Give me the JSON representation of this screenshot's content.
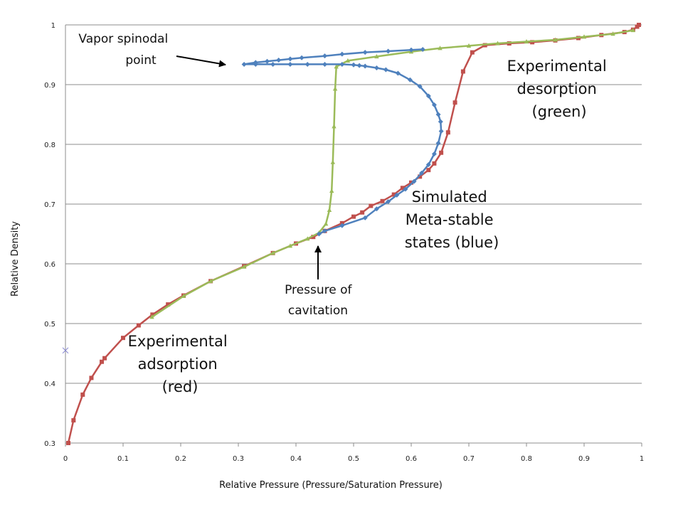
{
  "chart_data": {
    "type": "line",
    "title": "",
    "xlabel": "Relative Pressure (Pressure/Saturation Pressure)",
    "ylabel": "Relative Density",
    "xlim": [
      0,
      1
    ],
    "ylim": [
      0.3,
      1
    ],
    "x_ticks": [
      "0",
      "0.1",
      "0.2",
      "0.3",
      "0.4",
      "0.5",
      "0.6",
      "0.7",
      "0.8",
      "0.9",
      "1"
    ],
    "y_ticks": [
      "0.3",
      "0.4",
      "0.5",
      "0.6",
      "0.7",
      "0.8",
      "0.9",
      "1"
    ],
    "grid": "horizontal",
    "legend": "none",
    "series": [
      {
        "color": "#c0504d",
        "marker": "square",
        "points": [
          [
            0.005,
            0.3
          ],
          [
            0.014,
            0.338
          ],
          [
            0.03,
            0.381
          ],
          [
            0.045,
            0.409
          ],
          [
            0.063,
            0.436
          ],
          [
            0.068,
            0.442
          ],
          [
            0.1,
            0.476
          ],
          [
            0.127,
            0.497
          ],
          [
            0.151,
            0.515
          ],
          [
            0.178,
            0.532
          ],
          [
            0.205,
            0.547
          ],
          [
            0.252,
            0.571
          ],
          [
            0.31,
            0.596
          ],
          [
            0.36,
            0.618
          ],
          [
            0.4,
            0.634
          ],
          [
            0.43,
            0.645
          ],
          [
            0.45,
            0.655
          ],
          [
            0.48,
            0.668
          ],
          [
            0.5,
            0.679
          ],
          [
            0.515,
            0.686
          ],
          [
            0.53,
            0.697
          ],
          [
            0.55,
            0.705
          ],
          [
            0.57,
            0.716
          ],
          [
            0.585,
            0.727
          ],
          [
            0.6,
            0.736
          ],
          [
            0.615,
            0.746
          ],
          [
            0.63,
            0.757
          ],
          [
            0.64,
            0.768
          ],
          [
            0.652,
            0.786
          ],
          [
            0.664,
            0.82
          ],
          [
            0.676,
            0.87
          ],
          [
            0.69,
            0.922
          ],
          [
            0.706,
            0.954
          ],
          [
            0.728,
            0.966
          ],
          [
            0.77,
            0.969
          ],
          [
            0.81,
            0.971
          ],
          [
            0.85,
            0.974
          ],
          [
            0.89,
            0.978
          ],
          [
            0.93,
            0.983
          ],
          [
            0.97,
            0.988
          ],
          [
            0.985,
            0.992
          ],
          [
            0.992,
            0.997
          ],
          [
            0.995,
            1.0
          ]
        ]
      },
      {
        "color": "#9bbb59",
        "marker": "triangle",
        "points": [
          [
            0.15,
            0.511
          ],
          [
            0.205,
            0.546
          ],
          [
            0.252,
            0.571
          ],
          [
            0.31,
            0.595
          ],
          [
            0.36,
            0.618
          ],
          [
            0.39,
            0.63
          ],
          [
            0.42,
            0.642
          ],
          [
            0.44,
            0.652
          ],
          [
            0.452,
            0.667
          ],
          [
            0.458,
            0.69
          ],
          [
            0.462,
            0.722
          ],
          [
            0.464,
            0.77
          ],
          [
            0.466,
            0.83
          ],
          [
            0.468,
            0.893
          ],
          [
            0.47,
            0.93
          ],
          [
            0.49,
            0.94
          ],
          [
            0.54,
            0.947
          ],
          [
            0.6,
            0.955
          ],
          [
            0.65,
            0.961
          ],
          [
            0.7,
            0.965
          ],
          [
            0.75,
            0.969
          ],
          [
            0.8,
            0.972
          ],
          [
            0.85,
            0.975
          ],
          [
            0.9,
            0.98
          ],
          [
            0.95,
            0.985
          ],
          [
            0.985,
            0.991
          ]
        ]
      },
      {
        "color": "#4f81bd",
        "marker": "diamond",
        "points": [
          [
            0.44,
            0.65
          ],
          [
            0.45,
            0.655
          ],
          [
            0.48,
            0.664
          ],
          [
            0.52,
            0.677
          ],
          [
            0.54,
            0.692
          ],
          [
            0.56,
            0.704
          ],
          [
            0.575,
            0.715
          ],
          [
            0.59,
            0.725
          ],
          [
            0.605,
            0.738
          ],
          [
            0.618,
            0.752
          ],
          [
            0.63,
            0.766
          ],
          [
            0.64,
            0.784
          ],
          [
            0.647,
            0.802
          ],
          [
            0.652,
            0.822
          ],
          [
            0.651,
            0.838
          ],
          [
            0.647,
            0.85
          ],
          [
            0.64,
            0.866
          ],
          [
            0.63,
            0.881
          ],
          [
            0.615,
            0.897
          ],
          [
            0.598,
            0.908
          ],
          [
            0.577,
            0.919
          ],
          [
            0.556,
            0.925
          ],
          [
            0.54,
            0.928
          ],
          [
            0.52,
            0.931
          ],
          [
            0.51,
            0.932
          ],
          [
            0.5,
            0.933
          ],
          [
            0.48,
            0.934
          ],
          [
            0.45,
            0.934
          ],
          [
            0.42,
            0.934
          ],
          [
            0.39,
            0.934
          ],
          [
            0.36,
            0.934
          ],
          [
            0.33,
            0.934
          ],
          [
            0.31,
            0.934
          ],
          [
            0.33,
            0.937
          ],
          [
            0.35,
            0.939
          ],
          [
            0.37,
            0.941
          ],
          [
            0.39,
            0.943
          ],
          [
            0.41,
            0.945
          ],
          [
            0.45,
            0.948
          ],
          [
            0.48,
            0.951
          ],
          [
            0.52,
            0.954
          ],
          [
            0.56,
            0.956
          ],
          [
            0.6,
            0.958
          ],
          [
            0.62,
            0.959
          ]
        ]
      }
    ],
    "stray_points": [
      {
        "x": 0.0,
        "y": 0.455,
        "color": "#7f7fcf",
        "marker": "x"
      }
    ],
    "annotations": [
      {
        "lines": [
          "Vapor spinodal",
          "point"
        ],
        "arrow": true
      },
      {
        "lines": [
          "Experimental",
          "desorption",
          "(green)"
        ],
        "arrow": false
      },
      {
        "lines": [
          "Simulated",
          "Meta-stable",
          "states (blue)"
        ],
        "arrow": false
      },
      {
        "lines": [
          "Pressure of",
          "cavitation"
        ],
        "arrow": true
      },
      {
        "lines": [
          "Experimental",
          "adsorption",
          "(red)"
        ],
        "arrow": false
      }
    ]
  }
}
